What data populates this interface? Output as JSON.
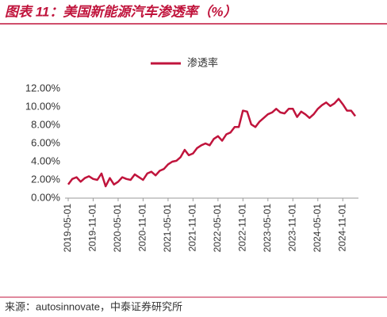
{
  "chart_data": {
    "type": "line",
    "title": "图表 11：美国新能源汽车渗透率（%）",
    "source": "来源：autosinnovate，中泰证券研究所",
    "categories": [
      "2019-05-01",
      null,
      null,
      null,
      null,
      null,
      "2019-11-01",
      null,
      null,
      null,
      null,
      null,
      "2020-05-01",
      null,
      null,
      null,
      null,
      null,
      "2020-11-01",
      null,
      null,
      null,
      null,
      null,
      "2021-05-01",
      null,
      null,
      null,
      null,
      null,
      "2021-11-01",
      null,
      null,
      null,
      null,
      null,
      "2022-05-01",
      null,
      null,
      null,
      null,
      null,
      "2022-11-01",
      null,
      null,
      null,
      null,
      null,
      "2023-05-01",
      null,
      null,
      null,
      null,
      null,
      "2023-11-01",
      null,
      null,
      null,
      null,
      null,
      "2024-05-01",
      null,
      null,
      null,
      null,
      null,
      "2024-11-01",
      null,
      null,
      null
    ],
    "series": [
      {
        "name": "渗透率",
        "color": "#c0143c",
        "values": [
          1.5,
          2.1,
          2.3,
          1.8,
          2.2,
          2.4,
          2.1,
          2.0,
          2.7,
          1.3,
          2.2,
          1.5,
          1.8,
          2.3,
          2.1,
          2.0,
          2.6,
          2.3,
          2.0,
          2.7,
          2.9,
          2.5,
          3.0,
          3.2,
          3.7,
          4.0,
          4.1,
          4.5,
          5.3,
          4.7,
          4.9,
          5.5,
          5.8,
          6.0,
          5.8,
          6.5,
          6.8,
          6.3,
          7.0,
          7.2,
          7.8,
          7.8,
          9.6,
          9.5,
          8.1,
          7.8,
          8.4,
          8.8,
          9.2,
          9.4,
          9.8,
          9.4,
          9.3,
          9.8,
          9.8,
          8.9,
          9.5,
          9.2,
          8.8,
          9.2,
          9.8,
          10.2,
          10.5,
          10.1,
          10.4,
          10.9,
          10.3,
          9.6,
          9.6,
          9.0
        ]
      }
    ],
    "ylim": [
      0,
      12
    ],
    "yticks": [
      {
        "value": 0,
        "label": "0.00%"
      },
      {
        "value": 2,
        "label": "2.00%"
      },
      {
        "value": 4,
        "label": "4.00%"
      },
      {
        "value": 6,
        "label": "6.00%"
      },
      {
        "value": 8,
        "label": "8.00%"
      },
      {
        "value": 10,
        "label": "10.00%"
      },
      {
        "value": 12,
        "label": "12.00%"
      }
    ],
    "legend": "top",
    "grid": false
  }
}
